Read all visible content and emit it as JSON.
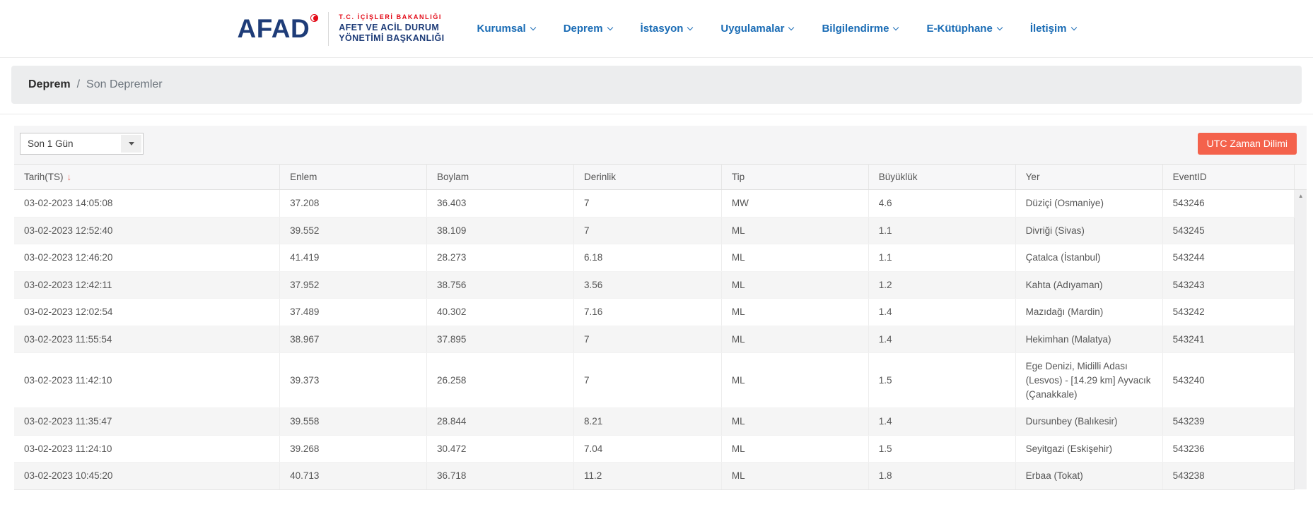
{
  "brand": {
    "name": "AFAD",
    "ministry": "T.C. İÇİŞLERİ BAKANLIĞI",
    "org_line1": "AFET VE ACİL DURUM",
    "org_line2": "YÖNETİMİ BAŞKANLIĞI"
  },
  "nav": {
    "items": [
      {
        "label": "Kurumsal"
      },
      {
        "label": "Deprem"
      },
      {
        "label": "İstasyon"
      },
      {
        "label": "Uygulamalar"
      },
      {
        "label": "Bilgilendirme"
      },
      {
        "label": "E-Kütüphane"
      },
      {
        "label": "İletişim"
      }
    ]
  },
  "breadcrumb": {
    "section": "Deprem",
    "separator": "/",
    "current": "Son Depremler"
  },
  "toolbar": {
    "filter_value": "Son 1 Gün",
    "utc_button_label": "UTC Zaman Dilimi"
  },
  "icons": {
    "sort_desc": "↓",
    "scroll_up": "▲"
  },
  "colors": {
    "nav_blue": "#1a6cb5",
    "logo_navy": "#1e3c78",
    "logo_red": "#e30a17",
    "utc_button_bg": "#f4624c",
    "sort_arrow": "#e8756b",
    "breadcrumb_bg": "#ecedee",
    "toolbar_bg": "#f5f5f6",
    "alt_row_bg": "#f5f5f5"
  },
  "table": {
    "columns": [
      "Tarih(TS)",
      "Enlem",
      "Boylam",
      "Derinlik",
      "Tip",
      "Büyüklük",
      "Yer",
      "EventID"
    ],
    "sorted_column": "Tarih(TS)",
    "sort_direction": "desc",
    "rows": [
      {
        "tarih": "03-02-2023 14:05:08",
        "enlem": "37.208",
        "boylam": "36.403",
        "derinlik": "7",
        "tip": "MW",
        "buyukluk": "4.6",
        "yer": "Düziçi (Osmaniye)",
        "event_id": "543246"
      },
      {
        "tarih": "03-02-2023 12:52:40",
        "enlem": "39.552",
        "boylam": "38.109",
        "derinlik": "7",
        "tip": "ML",
        "buyukluk": "1.1",
        "yer": "Divriği (Sivas)",
        "event_id": "543245"
      },
      {
        "tarih": "03-02-2023 12:46:20",
        "enlem": "41.419",
        "boylam": "28.273",
        "derinlik": "6.18",
        "tip": "ML",
        "buyukluk": "1.1",
        "yer": "Çatalca (İstanbul)",
        "event_id": "543244"
      },
      {
        "tarih": "03-02-2023 12:42:11",
        "enlem": "37.952",
        "boylam": "38.756",
        "derinlik": "3.56",
        "tip": "ML",
        "buyukluk": "1.2",
        "yer": "Kahta (Adıyaman)",
        "event_id": "543243"
      },
      {
        "tarih": "03-02-2023 12:02:54",
        "enlem": "37.489",
        "boylam": "40.302",
        "derinlik": "7.16",
        "tip": "ML",
        "buyukluk": "1.4",
        "yer": "Mazıdağı (Mardin)",
        "event_id": "543242"
      },
      {
        "tarih": "03-02-2023 11:55:54",
        "enlem": "38.967",
        "boylam": "37.895",
        "derinlik": "7",
        "tip": "ML",
        "buyukluk": "1.4",
        "yer": "Hekimhan (Malatya)",
        "event_id": "543241"
      },
      {
        "tarih": "03-02-2023 11:42:10",
        "enlem": "39.373",
        "boylam": "26.258",
        "derinlik": "7",
        "tip": "ML",
        "buyukluk": "1.5",
        "yer": "Ege Denizi, Midilli Adası (Lesvos) - [14.29 km] Ayvacık (Çanakkale)",
        "event_id": "543240"
      },
      {
        "tarih": "03-02-2023 11:35:47",
        "enlem": "39.558",
        "boylam": "28.844",
        "derinlik": "8.21",
        "tip": "ML",
        "buyukluk": "1.4",
        "yer": "Dursunbey (Balıkesir)",
        "event_id": "543239"
      },
      {
        "tarih": "03-02-2023 11:24:10",
        "enlem": "39.268",
        "boylam": "30.472",
        "derinlik": "7.04",
        "tip": "ML",
        "buyukluk": "1.5",
        "yer": "Seyitgazi (Eskişehir)",
        "event_id": "543236"
      },
      {
        "tarih": "03-02-2023 10:45:20",
        "enlem": "40.713",
        "boylam": "36.718",
        "derinlik": "11.2",
        "tip": "ML",
        "buyukluk": "1.8",
        "yer": "Erbaa (Tokat)",
        "event_id": "543238"
      }
    ]
  }
}
